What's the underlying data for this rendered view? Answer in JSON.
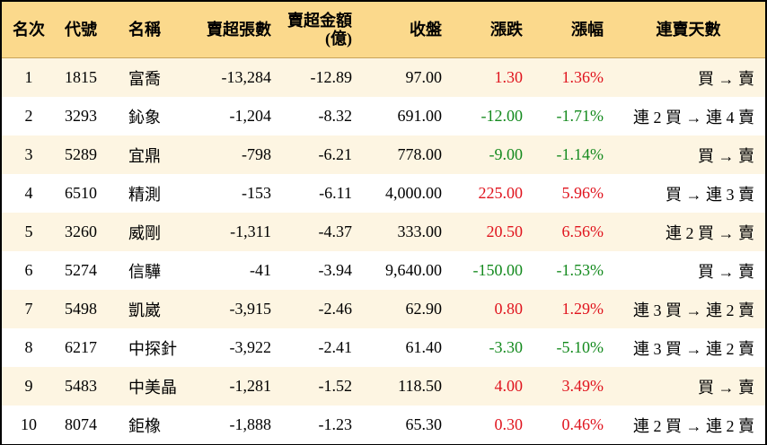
{
  "table": {
    "header": [
      "名次",
      "代號",
      "名稱",
      "賣超張數",
      "賣超金額\n(億)",
      "收盤",
      "漲跌",
      "漲幅",
      "連賣天數"
    ],
    "rows": [
      [
        "1",
        "1815",
        "富喬",
        "-13,284",
        "-12.89",
        "97.00",
        "1.30",
        "1.36%",
        "買 → 賣"
      ],
      [
        "2",
        "3293",
        "鈊象",
        "-1,204",
        "-8.32",
        "691.00",
        "-12.00",
        "-1.71%",
        "連 2 買 → 連 4 賣"
      ],
      [
        "3",
        "5289",
        "宜鼎",
        "-798",
        "-6.21",
        "778.00",
        "-9.00",
        "-1.14%",
        "買 → 賣"
      ],
      [
        "4",
        "6510",
        "精測",
        "-153",
        "-6.11",
        "4,000.00",
        "225.00",
        "5.96%",
        "買 → 連 3 賣"
      ],
      [
        "5",
        "3260",
        "威剛",
        "-1,311",
        "-4.37",
        "333.00",
        "20.50",
        "6.56%",
        "連 2 買 → 賣"
      ],
      [
        "6",
        "5274",
        "信驊",
        "-41",
        "-3.94",
        "9,640.00",
        "-150.00",
        "-1.53%",
        "買 → 賣"
      ],
      [
        "7",
        "5498",
        "凱崴",
        "-3,915",
        "-2.46",
        "62.90",
        "0.80",
        "1.29%",
        "連 3 買 → 連 2 賣"
      ],
      [
        "8",
        "6217",
        "中探針",
        "-3,922",
        "-2.41",
        "61.40",
        "-3.30",
        "-5.10%",
        "連 3 買 → 連 2 賣"
      ],
      [
        "9",
        "5483",
        "中美晶",
        "-1,281",
        "-1.52",
        "118.50",
        "4.00",
        "3.49%",
        "買 → 賣"
      ],
      [
        "10",
        "8074",
        "鉅橡",
        "-1,888",
        "-1.23",
        "65.30",
        "0.30",
        "0.46%",
        "連 2 買 → 連 2 賣"
      ]
    ]
  }
}
